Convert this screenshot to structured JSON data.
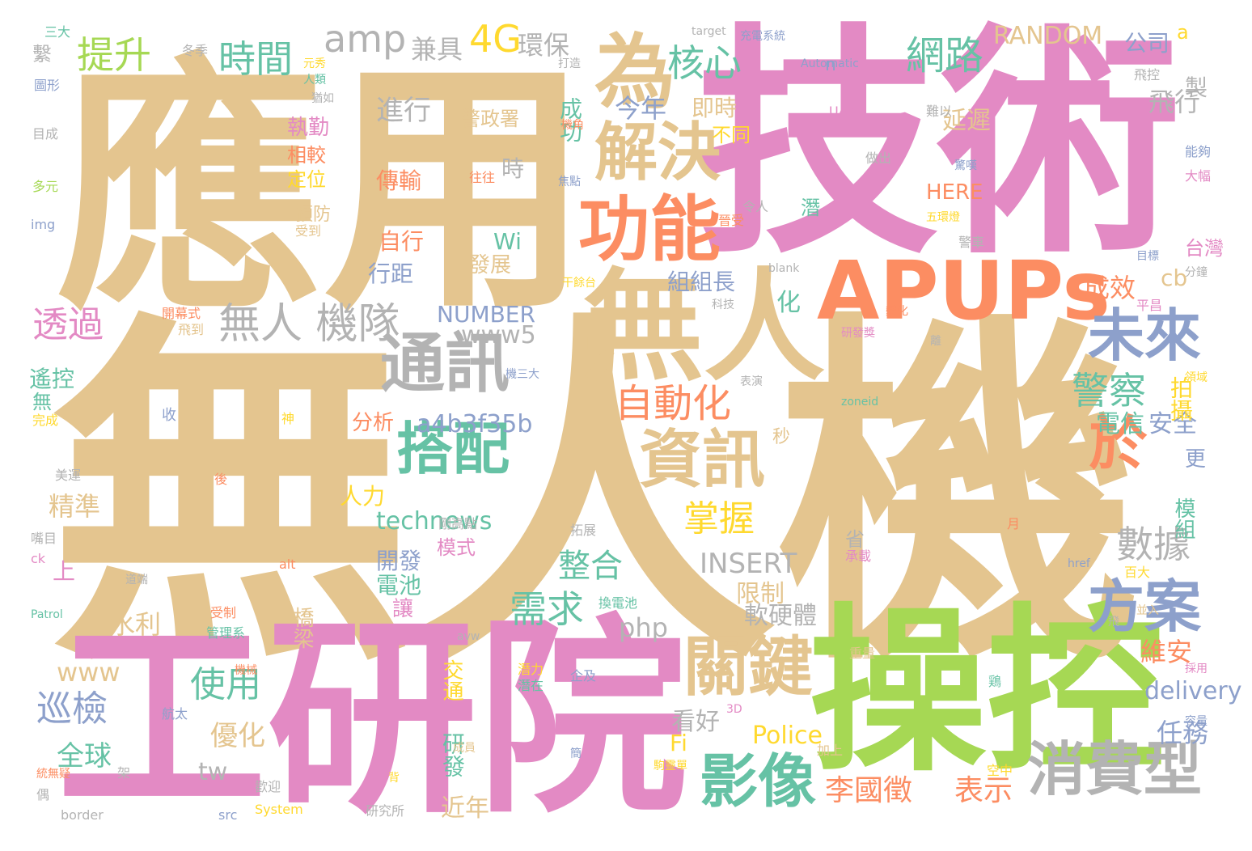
{
  "colors": {
    "tan": "#e4c58f",
    "pink": "#e38ac4",
    "green": "#a6d854",
    "orange": "#fc8d62",
    "blue": "#8da0cb",
    "teal": "#66c2a5",
    "yellow": "#ffd92f",
    "gray": "#b3b3b3"
  },
  "words": [
    {
      "text": "無人機",
      "color": "tan"
    },
    {
      "text": "應用",
      "color": "tan"
    },
    {
      "text": "技術",
      "color": "pink"
    },
    {
      "text": "工研院",
      "color": "pink"
    },
    {
      "text": "操控",
      "color": "green"
    },
    {
      "text": "無人",
      "color": "tan"
    },
    {
      "text": "APUPs",
      "color": "orange"
    },
    {
      "text": "功能",
      "color": "orange"
    },
    {
      "text": "解決",
      "color": "tan"
    },
    {
      "text": "為",
      "color": "tan"
    },
    {
      "text": "通訊",
      "color": "gray"
    },
    {
      "text": "資訊",
      "color": "tan"
    },
    {
      "text": "搭配",
      "color": "teal"
    },
    {
      "text": "關鍵",
      "color": "tan"
    },
    {
      "text": "影像",
      "color": "teal"
    },
    {
      "text": "消費型",
      "color": "gray"
    },
    {
      "text": "方案",
      "color": "blue"
    },
    {
      "text": "未來",
      "color": "blue"
    },
    {
      "text": "於",
      "color": "orange"
    },
    {
      "text": "無人 機隊",
      "color": "gray"
    },
    {
      "text": "時間",
      "color": "teal"
    },
    {
      "text": "提升",
      "color": "green"
    },
    {
      "text": "amp",
      "color": "gray"
    },
    {
      "text": "4G",
      "color": "yellow"
    },
    {
      "text": "網路",
      "color": "teal"
    },
    {
      "text": "核心",
      "color": "teal"
    },
    {
      "text": "RANDOM",
      "color": "tan"
    },
    {
      "text": "自動化",
      "color": "orange"
    },
    {
      "text": "警察",
      "color": "teal"
    },
    {
      "text": "數據",
      "color": "gray"
    },
    {
      "text": "需求",
      "color": "teal"
    },
    {
      "text": "使用",
      "color": "teal"
    },
    {
      "text": "巡檢",
      "color": "blue"
    },
    {
      "text": "透過",
      "color": "pink"
    },
    {
      "text": "掌握",
      "color": "yellow"
    },
    {
      "text": "整合",
      "color": "teal"
    },
    {
      "text": "李國徵",
      "color": "orange"
    },
    {
      "text": "表示",
      "color": "orange"
    },
    {
      "text": "www5",
      "color": "gray"
    },
    {
      "text": "a4b3f35b",
      "color": "blue"
    },
    {
      "text": "technews",
      "color": "teal"
    },
    {
      "text": "INSERT",
      "color": "gray"
    },
    {
      "text": "NUMBER",
      "color": "blue"
    },
    {
      "text": "Police",
      "color": "yellow"
    },
    {
      "text": "delivery",
      "color": "blue"
    },
    {
      "text": "php",
      "color": "gray"
    },
    {
      "text": "www",
      "color": "tan"
    },
    {
      "text": "tw",
      "color": "gray"
    },
    {
      "text": "HERE",
      "color": "orange"
    },
    {
      "text": "Wi",
      "color": "teal"
    },
    {
      "text": "Fi",
      "color": "yellow"
    },
    {
      "text": "cb",
      "color": "tan"
    },
    {
      "text": "n",
      "color": "blue"
    },
    {
      "text": "a",
      "color": "yellow"
    },
    {
      "text": "進行",
      "color": "gray"
    },
    {
      "text": "兼具",
      "color": "gray"
    },
    {
      "text": "環保",
      "color": "gray"
    },
    {
      "text": "今年",
      "color": "blue"
    },
    {
      "text": "成功",
      "color": "teal"
    },
    {
      "text": "即時",
      "color": "tan"
    },
    {
      "text": "飛行",
      "color": "gray"
    },
    {
      "text": "延遲",
      "color": "tan"
    },
    {
      "text": "公司",
      "color": "blue"
    },
    {
      "text": "製",
      "color": "gray"
    },
    {
      "text": "組組長",
      "color": "blue"
    },
    {
      "text": "成效",
      "color": "orange"
    },
    {
      "text": "台灣",
      "color": "pink"
    },
    {
      "text": "化",
      "color": "teal"
    },
    {
      "text": "電信",
      "color": "teal"
    },
    {
      "text": "安全",
      "color": "blue"
    },
    {
      "text": "拍攝",
      "color": "yellow"
    },
    {
      "text": "維安",
      "color": "orange"
    },
    {
      "text": "任務",
      "color": "blue"
    },
    {
      "text": "模組",
      "color": "teal"
    },
    {
      "text": "看好",
      "color": "gray"
    },
    {
      "text": "研發",
      "color": "teal"
    },
    {
      "text": "近年",
      "color": "tan"
    },
    {
      "text": "交通",
      "color": "yellow"
    },
    {
      "text": "限制",
      "color": "tan"
    },
    {
      "text": "軟硬體",
      "color": "gray"
    },
    {
      "text": "精準",
      "color": "tan"
    },
    {
      "text": "水利",
      "color": "tan"
    },
    {
      "text": "全球",
      "color": "teal"
    },
    {
      "text": "優化",
      "color": "tan"
    },
    {
      "text": "遙控",
      "color": "teal"
    },
    {
      "text": "上",
      "color": "pink"
    },
    {
      "text": "電池",
      "color": "teal"
    },
    {
      "text": "開發",
      "color": "blue"
    },
    {
      "text": "模式",
      "color": "pink"
    },
    {
      "text": "人力",
      "color": "yellow"
    },
    {
      "text": "分析",
      "color": "orange"
    },
    {
      "text": "讓",
      "color": "pink"
    },
    {
      "text": "橋梁",
      "color": "tan"
    },
    {
      "text": "傳輸",
      "color": "orange"
    },
    {
      "text": "自行",
      "color": "orange"
    },
    {
      "text": "行距",
      "color": "blue"
    },
    {
      "text": "發展",
      "color": "tan"
    },
    {
      "text": "執勤",
      "color": "pink"
    },
    {
      "text": "相較",
      "color": "orange"
    },
    {
      "text": "定位",
      "color": "yellow"
    },
    {
      "text": "預防",
      "color": "tan"
    },
    {
      "text": "警政署",
      "color": "tan"
    },
    {
      "text": "時",
      "color": "gray"
    },
    {
      "text": "不同",
      "color": "yellow"
    },
    {
      "text": "更",
      "color": "blue"
    },
    {
      "text": "秒",
      "color": "tan"
    },
    {
      "text": "省",
      "color": "gray"
    },
    {
      "text": "潛",
      "color": "teal"
    },
    {
      "text": "無",
      "color": "teal"
    },
    {
      "text": "三大",
      "color": "teal"
    },
    {
      "text": "繫",
      "color": "gray"
    },
    {
      "text": "圖形",
      "color": "blue"
    },
    {
      "text": "目成",
      "color": "gray"
    },
    {
      "text": "多元",
      "color": "green"
    },
    {
      "text": "img",
      "color": "blue"
    },
    {
      "text": "冬季",
      "color": "gray"
    },
    {
      "text": "元秀",
      "color": "yellow"
    },
    {
      "text": "人類",
      "color": "teal"
    },
    {
      "text": "猶如",
      "color": "gray"
    },
    {
      "text": "受到",
      "color": "tan"
    },
    {
      "text": "飛到",
      "color": "tan"
    },
    {
      "text": "開幕式",
      "color": "orange"
    },
    {
      "text": "完成",
      "color": "yellow"
    },
    {
      "text": "美運",
      "color": "gray"
    },
    {
      "text": "收",
      "color": "blue"
    },
    {
      "text": "後",
      "color": "orange"
    },
    {
      "text": "神",
      "color": "yellow"
    },
    {
      "text": "ck",
      "color": "pink"
    },
    {
      "text": "嘴目",
      "color": "gray"
    },
    {
      "text": "alt",
      "color": "orange"
    },
    {
      "text": "道端",
      "color": "gray"
    },
    {
      "text": "Patrol",
      "color": "teal"
    },
    {
      "text": "受制",
      "color": "orange"
    },
    {
      "text": "管理系",
      "color": "teal"
    },
    {
      "text": "avw",
      "color": "gray"
    },
    {
      "text": "機械",
      "color": "orange"
    },
    {
      "text": "航太",
      "color": "blue"
    },
    {
      "text": "統無疑",
      "color": "orange"
    },
    {
      "text": "架",
      "color": "gray"
    },
    {
      "text": "偶",
      "color": "gray"
    },
    {
      "text": "背",
      "color": "yellow"
    },
    {
      "text": "歡迎",
      "color": "gray"
    },
    {
      "text": "border",
      "color": "gray"
    },
    {
      "text": "src",
      "color": "blue"
    },
    {
      "text": "System",
      "color": "yellow"
    },
    {
      "text": "研究所",
      "color": "gray"
    },
    {
      "text": "剛高點",
      "color": "gray"
    },
    {
      "text": "拓展",
      "color": "gray"
    },
    {
      "text": "換電池",
      "color": "teal"
    },
    {
      "text": "潛力",
      "color": "yellow"
    },
    {
      "text": "潛在",
      "color": "teal"
    },
    {
      "text": "企及",
      "color": "blue"
    },
    {
      "text": "成員",
      "color": "tan"
    },
    {
      "text": "簡",
      "color": "blue"
    },
    {
      "text": "駒靈單",
      "color": "yellow"
    },
    {
      "text": "3D",
      "color": "pink"
    },
    {
      "text": "加上",
      "color": "tan"
    },
    {
      "text": "空中",
      "color": "yellow"
    },
    {
      "text": "重量",
      "color": "tan"
    },
    {
      "text": "飛",
      "color": "gray"
    },
    {
      "text": "並入",
      "color": "tan"
    },
    {
      "text": "百大",
      "color": "yellow"
    },
    {
      "text": "採用",
      "color": "pink"
    },
    {
      "text": "容量",
      "color": "blue"
    },
    {
      "text": "鶏",
      "color": "teal"
    },
    {
      "text": "href",
      "color": "blue"
    },
    {
      "text": "承載",
      "color": "pink"
    },
    {
      "text": "月",
      "color": "orange"
    },
    {
      "text": "領域",
      "color": "yellow"
    },
    {
      "text": "zoneid",
      "color": "teal"
    },
    {
      "text": "離",
      "color": "gray"
    },
    {
      "text": "研發獎",
      "color": "pink"
    },
    {
      "text": "變化",
      "color": "orange"
    },
    {
      "text": "平昌",
      "color": "pink"
    },
    {
      "text": "科技",
      "color": "gray"
    },
    {
      "text": "干餘台",
      "color": "yellow"
    },
    {
      "text": "分鐘",
      "color": "gray"
    },
    {
      "text": "blank",
      "color": "gray"
    },
    {
      "text": "目標",
      "color": "blue"
    },
    {
      "text": "警車",
      "color": "gray"
    },
    {
      "text": "晉受",
      "color": "orange"
    },
    {
      "text": "令人",
      "color": "gray"
    },
    {
      "text": "五環燈",
      "color": "yellow"
    },
    {
      "text": "焦點",
      "color": "blue"
    },
    {
      "text": "往往",
      "color": "orange"
    },
    {
      "text": "機角",
      "color": "orange"
    },
    {
      "text": "做出",
      "color": "gray"
    },
    {
      "text": "驚嘆",
      "color": "blue"
    },
    {
      "text": "大幅",
      "color": "pink"
    },
    {
      "text": "能夠",
      "color": "blue"
    },
    {
      "text": "難以",
      "color": "gray"
    },
    {
      "text": "UAV",
      "color": "pink"
    },
    {
      "text": "飛控",
      "color": "gray"
    },
    {
      "text": "Automatic",
      "color": "blue"
    },
    {
      "text": "打造",
      "color": "gray"
    },
    {
      "text": "target",
      "color": "gray"
    },
    {
      "text": "充電系統",
      "color": "blue"
    },
    {
      "text": "表演",
      "color": "gray"
    },
    {
      "text": "機三大",
      "color": "blue"
    },
    {
      "text": "匯合",
      "color": "gray"
    },
    {
      "text": "眼",
      "color": "blue"
    }
  ]
}
